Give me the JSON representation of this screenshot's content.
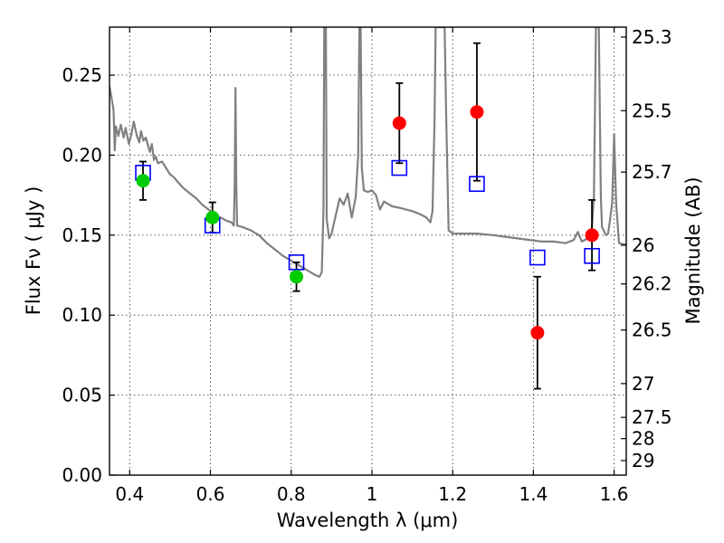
{
  "chart_data": {
    "type": "scatter",
    "title": "",
    "xlabel": "Wavelength  λ (μm)",
    "ylabel_left": "Flux  Fν  ( μJy )",
    "ylabel_right": "Magnitude (AB)",
    "xlim": [
      0.35,
      1.63
    ],
    "ylim": [
      0.0,
      0.28
    ],
    "grid": true,
    "x_ticks": [
      {
        "value": 0.4,
        "label": "0.4"
      },
      {
        "value": 0.6,
        "label": "0.6"
      },
      {
        "value": 0.8,
        "label": "0.8"
      },
      {
        "value": 1.0,
        "label": "1"
      },
      {
        "value": 1.2,
        "label": "1.2"
      },
      {
        "value": 1.4,
        "label": "1.4"
      },
      {
        "value": 1.6,
        "label": "1.6"
      }
    ],
    "y_ticks": [
      {
        "value": 0.0,
        "label": "0.00"
      },
      {
        "value": 0.05,
        "label": "0.05"
      },
      {
        "value": 0.1,
        "label": "0.10"
      },
      {
        "value": 0.15,
        "label": "0.15"
      },
      {
        "value": 0.2,
        "label": "0.20"
      },
      {
        "value": 0.25,
        "label": "0.25"
      }
    ],
    "right_ticks": [
      {
        "label": "25.3",
        "flux": 0.2738
      },
      {
        "label": "25.5",
        "flux": 0.2278
      },
      {
        "label": "25.7",
        "flux": 0.1894
      },
      {
        "label": "26",
        "flux": 0.1437
      },
      {
        "label": "26.2",
        "flux": 0.1195
      },
      {
        "label": "26.5",
        "flux": 0.0907
      },
      {
        "label": "27",
        "flux": 0.0572
      },
      {
        "label": "27.5",
        "flux": 0.0361
      },
      {
        "label": "28",
        "flux": 0.0228
      },
      {
        "label": "29",
        "flux": 0.0091
      }
    ],
    "series": [
      {
        "type": "line",
        "color": "#808080",
        "points": [
          [
            0.35,
            0.243
          ],
          [
            0.355,
            0.236
          ],
          [
            0.36,
            0.228
          ],
          [
            0.363,
            0.203
          ],
          [
            0.366,
            0.218
          ],
          [
            0.372,
            0.212
          ],
          [
            0.378,
            0.219
          ],
          [
            0.385,
            0.211
          ],
          [
            0.39,
            0.217
          ],
          [
            0.398,
            0.207
          ],
          [
            0.405,
            0.214
          ],
          [
            0.41,
            0.221
          ],
          [
            0.418,
            0.212
          ],
          [
            0.424,
            0.208
          ],
          [
            0.428,
            0.215
          ],
          [
            0.434,
            0.209
          ],
          [
            0.44,
            0.211
          ],
          [
            0.45,
            0.202
          ],
          [
            0.455,
            0.207
          ],
          [
            0.46,
            0.197
          ],
          [
            0.465,
            0.199
          ],
          [
            0.47,
            0.195
          ],
          [
            0.48,
            0.196
          ],
          [
            0.49,
            0.192
          ],
          [
            0.5,
            0.188
          ],
          [
            0.51,
            0.186
          ],
          [
            0.52,
            0.183
          ],
          [
            0.535,
            0.179
          ],
          [
            0.55,
            0.176
          ],
          [
            0.565,
            0.173
          ],
          [
            0.58,
            0.169
          ],
          [
            0.595,
            0.166
          ],
          [
            0.61,
            0.163
          ],
          [
            0.625,
            0.161
          ],
          [
            0.64,
            0.159
          ],
          [
            0.652,
            0.158
          ],
          [
            0.658,
            0.156
          ],
          [
            0.66,
            0.181
          ],
          [
            0.662,
            0.242
          ],
          [
            0.664,
            0.181
          ],
          [
            0.666,
            0.156
          ],
          [
            0.68,
            0.155
          ],
          [
            0.7,
            0.153
          ],
          [
            0.72,
            0.15
          ],
          [
            0.74,
            0.145
          ],
          [
            0.76,
            0.141
          ],
          [
            0.78,
            0.137
          ],
          [
            0.8,
            0.134
          ],
          [
            0.82,
            0.131
          ],
          [
            0.84,
            0.128
          ],
          [
            0.86,
            0.125
          ],
          [
            0.87,
            0.124
          ],
          [
            0.876,
            0.127
          ],
          [
            0.88,
            0.165
          ],
          [
            0.882,
            0.28
          ],
          [
            0.886,
            0.28
          ],
          [
            0.888,
            0.16
          ],
          [
            0.894,
            0.148
          ],
          [
            0.9,
            0.151
          ],
          [
            0.91,
            0.162
          ],
          [
            0.92,
            0.173
          ],
          [
            0.93,
            0.169
          ],
          [
            0.94,
            0.176
          ],
          [
            0.95,
            0.161
          ],
          [
            0.96,
            0.174
          ],
          [
            0.966,
            0.2
          ],
          [
            0.969,
            0.28
          ],
          [
            0.972,
            0.28
          ],
          [
            0.975,
            0.192
          ],
          [
            0.98,
            0.178
          ],
          [
            0.99,
            0.177
          ],
          [
            1.0,
            0.178
          ],
          [
            1.01,
            0.175
          ],
          [
            1.02,
            0.166
          ],
          [
            1.03,
            0.171
          ],
          [
            1.05,
            0.168
          ],
          [
            1.07,
            0.167
          ],
          [
            1.1,
            0.165
          ],
          [
            1.12,
            0.163
          ],
          [
            1.135,
            0.161
          ],
          [
            1.145,
            0.158
          ],
          [
            1.15,
            0.165
          ],
          [
            1.155,
            0.22
          ],
          [
            1.158,
            0.28
          ],
          [
            1.18,
            0.28
          ],
          [
            1.184,
            0.225
          ],
          [
            1.19,
            0.153
          ],
          [
            1.2,
            0.151
          ],
          [
            1.22,
            0.151
          ],
          [
            1.26,
            0.151
          ],
          [
            1.3,
            0.15
          ],
          [
            1.33,
            0.149
          ],
          [
            1.36,
            0.148
          ],
          [
            1.39,
            0.147
          ],
          [
            1.42,
            0.146
          ],
          [
            1.45,
            0.146
          ],
          [
            1.48,
            0.145
          ],
          [
            1.5,
            0.147
          ],
          [
            1.51,
            0.152
          ],
          [
            1.52,
            0.146
          ],
          [
            1.535,
            0.148
          ],
          [
            1.545,
            0.155
          ],
          [
            1.55,
            0.175
          ],
          [
            1.555,
            0.28
          ],
          [
            1.562,
            0.28
          ],
          [
            1.567,
            0.175
          ],
          [
            1.57,
            0.155
          ],
          [
            1.58,
            0.15
          ],
          [
            1.585,
            0.151
          ],
          [
            1.59,
            0.16
          ],
          [
            1.595,
            0.17
          ],
          [
            1.6,
            0.213
          ],
          [
            1.605,
            0.17
          ],
          [
            1.612,
            0.145
          ],
          [
            1.63,
            0.144
          ]
        ]
      },
      {
        "type": "scatter",
        "marker": "square",
        "color": "#0000ff",
        "points": [
          [
            0.433,
            0.189
          ],
          [
            0.605,
            0.156
          ],
          [
            0.813,
            0.133
          ],
          [
            1.068,
            0.192
          ],
          [
            1.26,
            0.182
          ],
          [
            1.41,
            0.136
          ],
          [
            1.545,
            0.137
          ]
        ]
      },
      {
        "type": "scatter",
        "marker": "circle",
        "color": "#00cc00",
        "points": [
          {
            "x": 0.433,
            "y": 0.184,
            "err": 0.012
          },
          {
            "x": 0.605,
            "y": 0.161,
            "err": 0.0095
          },
          {
            "x": 0.813,
            "y": 0.124,
            "err": 0.009
          }
        ]
      },
      {
        "type": "scatter",
        "marker": "circle",
        "color": "#ff0000",
        "points": [
          {
            "x": 1.068,
            "y": 0.22,
            "err": 0.025
          },
          {
            "x": 1.26,
            "y": 0.227,
            "err": 0.043
          },
          {
            "x": 1.41,
            "y": 0.089,
            "err": 0.035
          },
          {
            "x": 1.545,
            "y": 0.15,
            "err": 0.022
          }
        ]
      }
    ]
  }
}
